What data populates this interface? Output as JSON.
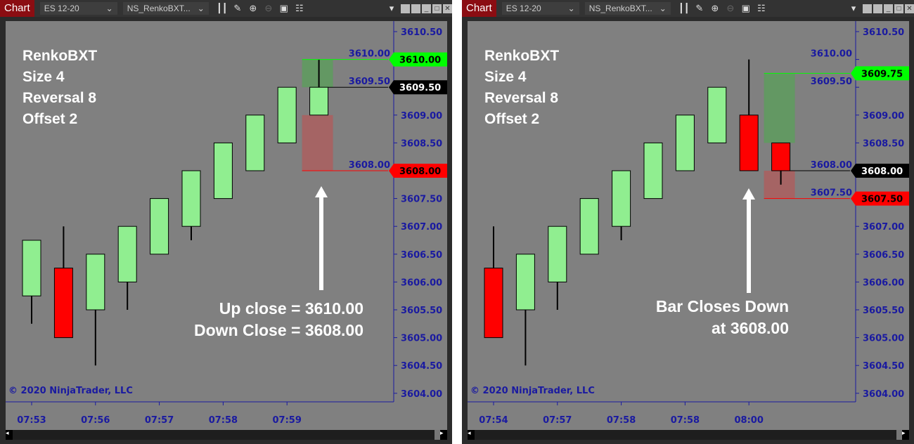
{
  "toolbar": {
    "tab": "Chart",
    "instrument": "ES 12-20",
    "template": "NS_RenkoBXT...",
    "icons": [
      "bars-icon",
      "pencil-icon",
      "zoom-in-icon",
      "zoom-out-icon",
      "properties-icon",
      "data-box-icon"
    ]
  },
  "colors": {
    "up": "#90ee90",
    "down": "#ff0000",
    "background": "#808080",
    "axis": "#1a1aa0",
    "green_label": "#00ff00"
  },
  "price_ticks": [
    "3610.50",
    "3610.00",
    "3609.50",
    "3609.00",
    "3608.50",
    "3608.00",
    "3607.50",
    "3607.00",
    "3606.50",
    "3606.00",
    "3605.50",
    "3605.00",
    "3604.50",
    "3604.00"
  ],
  "charts": [
    {
      "info": [
        "RenkoBXT",
        "Size 4",
        "Reversal 8",
        "Offset 2"
      ],
      "copyright": "© 2020 NinjaTrader, LLC",
      "times": [
        "07:53",
        "07:56",
        "07:57",
        "07:58",
        "07:59"
      ],
      "candles": [
        [
          3605.75,
          3606.75,
          3605.25,
          3606.75
        ],
        [
          3606.25,
          3607.0,
          3605.0,
          3605.0
        ],
        [
          3605.5,
          3606.5,
          3604.5,
          3606.5
        ],
        [
          3606.0,
          3607.0,
          3605.5,
          3607.0
        ],
        [
          3606.5,
          3607.5,
          3606.5,
          3607.5
        ],
        [
          3607.0,
          3608.0,
          3606.75,
          3608.0
        ],
        [
          3607.5,
          3608.5,
          3607.5,
          3608.5
        ],
        [
          3608.0,
          3609.0,
          3608.0,
          3609.0
        ],
        [
          3608.5,
          3609.5,
          3608.5,
          3609.5
        ],
        [
          3609.0,
          3610.0,
          3609.0,
          3609.5
        ]
      ],
      "ghost_up": [
        3609.5,
        3610.0
      ],
      "ghost_down": [
        3608.0,
        3609.0
      ],
      "labels": [
        {
          "price": "3610.00",
          "kind": "up"
        },
        {
          "price": "3609.50",
          "kind": "last"
        },
        {
          "price": "3608.00",
          "kind": "down"
        }
      ],
      "annotation": [
        "Up close = 3610.00",
        "Down Close = 3608.00"
      ]
    },
    {
      "info": [
        "RenkoBXT",
        "Size 4",
        "Reversal 8",
        "Offset 2"
      ],
      "copyright": "© 2020 NinjaTrader, LLC",
      "times": [
        "07:54",
        "07:57",
        "07:58",
        "07:58",
        "08:00"
      ],
      "candles": [
        [
          3606.25,
          3607.0,
          3605.0,
          3605.0
        ],
        [
          3605.5,
          3606.5,
          3604.5,
          3606.5
        ],
        [
          3606.0,
          3607.0,
          3605.5,
          3607.0
        ],
        [
          3606.5,
          3607.5,
          3606.5,
          3607.5
        ],
        [
          3607.0,
          3608.0,
          3606.75,
          3608.0
        ],
        [
          3607.5,
          3608.5,
          3607.5,
          3608.5
        ],
        [
          3608.0,
          3609.0,
          3608.0,
          3609.0
        ],
        [
          3608.5,
          3609.5,
          3608.5,
          3609.5
        ],
        [
          3609.0,
          3610.0,
          3608.0,
          3608.0
        ],
        [
          3608.5,
          3608.5,
          3607.75,
          3608.0
        ]
      ],
      "ghost_up": [
        3608.5,
        3609.75
      ],
      "ghost_down": [
        3607.5,
        3608.0
      ],
      "labels": [
        {
          "price": "3609.75",
          "kind": "up"
        },
        {
          "price": "3608.00",
          "kind": "last"
        },
        {
          "price": "3607.50",
          "kind": "down"
        }
      ],
      "annotation": [
        "Bar Closes Down",
        "at 3608.00"
      ]
    }
  ]
}
